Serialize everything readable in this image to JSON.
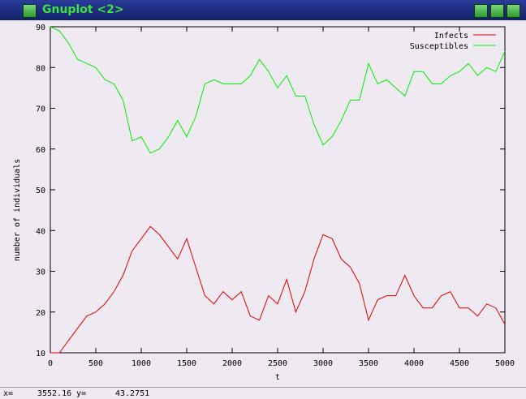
{
  "window": {
    "title": "Gnuplot <2>"
  },
  "status": {
    "x_label": "x=",
    "x_value": "3552.16",
    "y_label": "y=",
    "y_value": "43.2751"
  },
  "chart_data": {
    "type": "line",
    "xlabel": "t",
    "ylabel": "number of individuals",
    "x": [
      0,
      100,
      200,
      300,
      400,
      500,
      600,
      700,
      800,
      900,
      1000,
      1100,
      1200,
      1300,
      1400,
      1500,
      1600,
      1700,
      1800,
      1900,
      2000,
      2100,
      2200,
      2300,
      2400,
      2500,
      2600,
      2700,
      2800,
      2900,
      3000,
      3100,
      3200,
      3300,
      3400,
      3500,
      3600,
      3700,
      3800,
      3900,
      4000,
      4100,
      4200,
      4300,
      4400,
      4500,
      4600,
      4700,
      4800,
      4900,
      5000
    ],
    "series": [
      {
        "name": "Infects",
        "color": "#dd0000",
        "values": [
          10,
          10,
          13,
          16,
          19,
          20,
          22,
          25,
          29,
          35,
          38,
          41,
          39,
          36,
          33,
          38,
          31,
          24,
          22,
          25,
          23,
          25,
          19,
          18,
          24,
          22,
          28,
          20,
          25,
          33,
          39,
          38,
          33,
          31,
          27,
          18,
          23,
          24,
          24,
          29,
          24,
          21,
          21,
          24,
          25,
          21,
          21,
          19,
          22,
          21,
          17
        ]
      },
      {
        "name": "Susceptibles",
        "color": "#00ee00",
        "values": [
          90,
          89,
          86,
          82,
          81,
          80,
          77,
          76,
          72,
          62,
          63,
          59,
          60,
          63,
          67,
          63,
          68,
          76,
          77,
          76,
          76,
          76,
          78,
          82,
          79,
          75,
          78,
          73,
          73,
          66,
          61,
          63,
          67,
          72,
          72,
          81,
          76,
          77,
          75,
          73,
          79,
          79,
          76,
          76,
          78,
          79,
          81,
          78,
          80,
          79,
          84
        ]
      }
    ],
    "xlim": [
      0,
      5000
    ],
    "xticks": [
      0,
      500,
      1000,
      1500,
      2000,
      2500,
      3000,
      3500,
      4000,
      4500,
      5000
    ],
    "ylim": [
      10,
      90
    ],
    "yticks": [
      10,
      20,
      30,
      40,
      50,
      60,
      70,
      80,
      90
    ],
    "grid": false,
    "legend": "top-right"
  }
}
